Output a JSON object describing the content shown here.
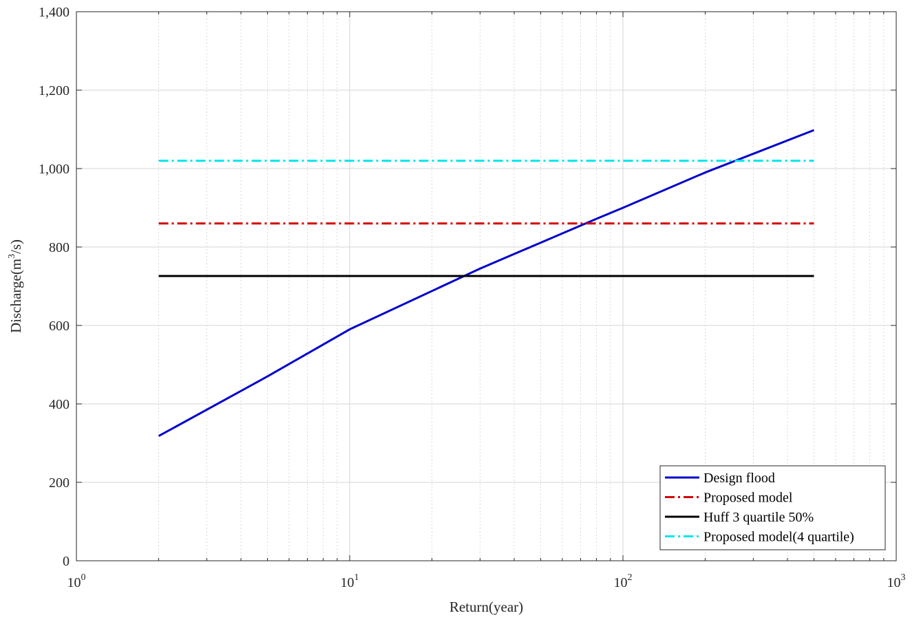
{
  "chart_data": {
    "type": "line",
    "title": "",
    "xlabel": "Return(year)",
    "ylabel_main": "Discharge(m",
    "ylabel_sup": "3",
    "ylabel_tail": "/s)",
    "x_scale": "log",
    "xlim": [
      1,
      1000
    ],
    "ylim": [
      0,
      1400
    ],
    "grid": true,
    "legend_position": "bottom-right",
    "x_ticks": [
      {
        "base": "10",
        "exp": "0",
        "value": 1
      },
      {
        "base": "10",
        "exp": "1",
        "value": 10
      },
      {
        "base": "10",
        "exp": "2",
        "value": 100
      },
      {
        "base": "10",
        "exp": "3",
        "value": 1000
      }
    ],
    "y_ticks": [
      {
        "label": "0",
        "value": 0
      },
      {
        "label": "200",
        "value": 200
      },
      {
        "label": "400",
        "value": 400
      },
      {
        "label": "600",
        "value": 600
      },
      {
        "label": "800",
        "value": 800
      },
      {
        "label": "1,000",
        "value": 1000
      },
      {
        "label": "1,200",
        "value": 1200
      },
      {
        "label": "1,400",
        "value": 1400
      }
    ],
    "series": [
      {
        "name": "Design flood",
        "color": "#0000cc",
        "style": "solid",
        "x": [
          2,
          5,
          10,
          30,
          80,
          100,
          200,
          500
        ],
        "y": [
          318,
          470,
          590,
          745,
          872,
          900,
          990,
          1098
        ]
      },
      {
        "name": "Proposed model",
        "color": "#d40000",
        "style": "dashdot",
        "x": [
          2,
          500
        ],
        "y": [
          860,
          860
        ]
      },
      {
        "name": "Huff 3 quartile 50%",
        "color": "#000000",
        "style": "solid",
        "x": [
          2,
          500
        ],
        "y": [
          726,
          726
        ]
      },
      {
        "name": "Proposed model(4 quartile)",
        "color": "#00e5ee",
        "style": "dashdot",
        "x": [
          2,
          500
        ],
        "y": [
          1020,
          1020
        ]
      }
    ]
  }
}
